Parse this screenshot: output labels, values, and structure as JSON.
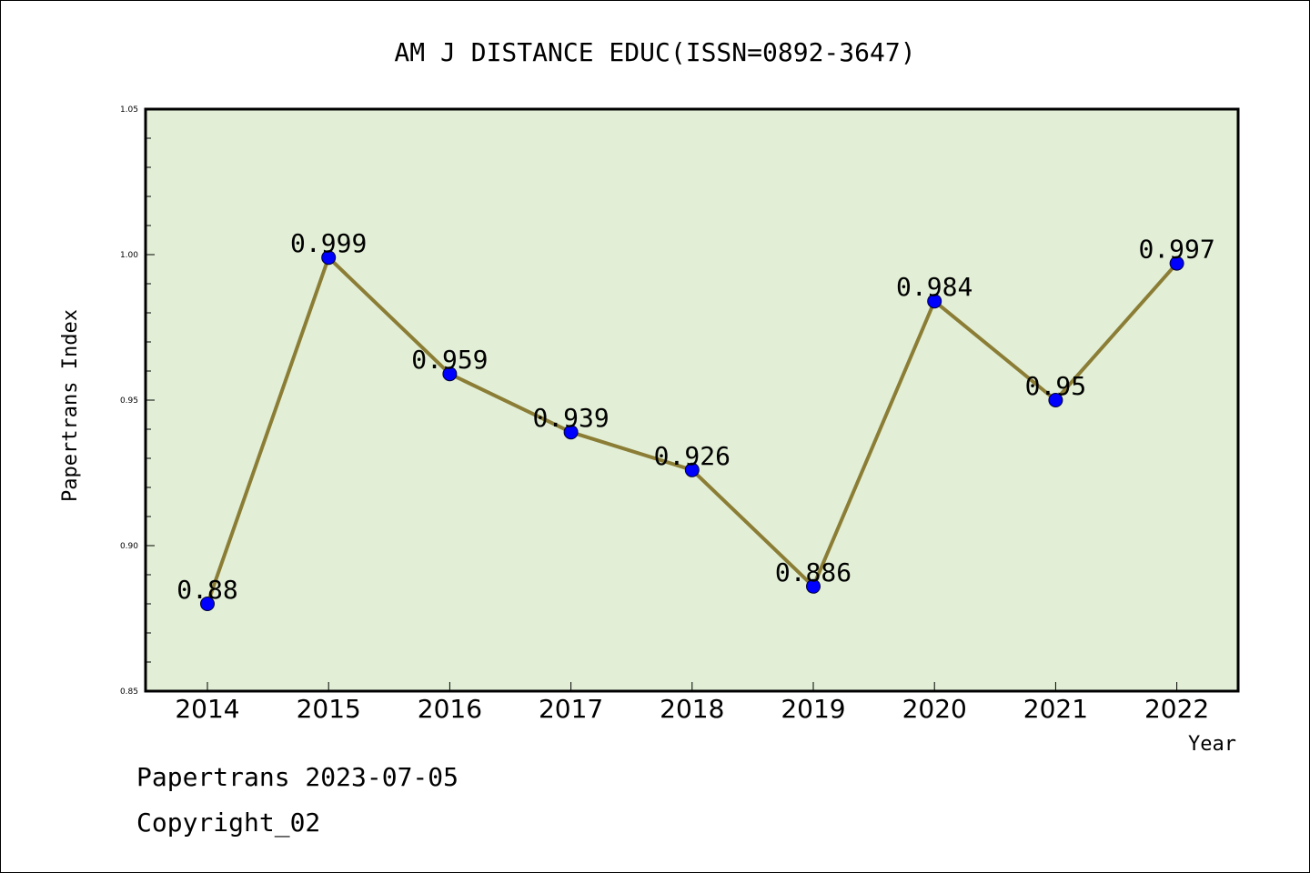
{
  "chart_data": {
    "type": "line",
    "title": "AM J DISTANCE EDUC(ISSN=0892-3647)",
    "xlabel": "Year",
    "ylabel": "Papertrans Index",
    "categories": [
      "2014",
      "2015",
      "2016",
      "2017",
      "2018",
      "2019",
      "2020",
      "2021",
      "2022"
    ],
    "values": [
      0.88,
      0.999,
      0.959,
      0.939,
      0.926,
      0.886,
      0.984,
      0.95,
      0.997
    ],
    "data_labels": [
      "0.88",
      "0.999",
      "0.959",
      "0.939",
      "0.926",
      "0.886",
      "0.984",
      "0.95",
      "0.997"
    ],
    "ylim": [
      0.85,
      1.05
    ],
    "yticks": [
      "0.85",
      "0.90",
      "0.95",
      "1.00",
      "1.05"
    ],
    "grid": false,
    "colors": {
      "plot_background": "#e2efd6",
      "line": "#8b7d35",
      "marker": "#0000ff"
    }
  },
  "footer": {
    "line1": "Papertrans 2023-07-05",
    "line2": "Copyright_02"
  }
}
